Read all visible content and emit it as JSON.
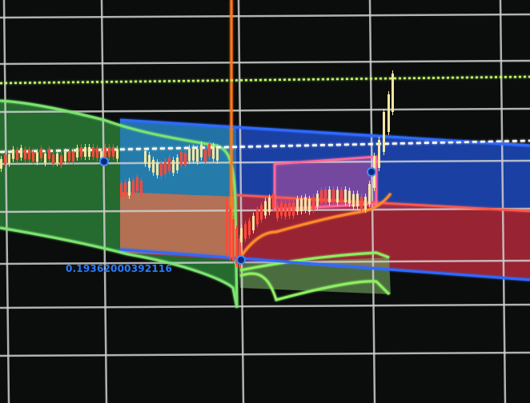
{
  "price_label": "0.19362000392116",
  "colors": {
    "background": "#0a0d0c",
    "grid": "#c9c9c9",
    "label": "#2a7bff",
    "blue_zone": "#1f4fd0",
    "red_zone": "#c8333b",
    "green_envelope": "#5fd36b",
    "bright_green_line": "#9aff5a",
    "orange_line": "#ff7a1f",
    "pink_box": "#ff5a8a",
    "candle_up": "#f5e6a0",
    "candle_down": "#ff4a3a",
    "white_dashed": "#ffffff"
  },
  "icons": [
    "anchor-point-icon"
  ]
}
